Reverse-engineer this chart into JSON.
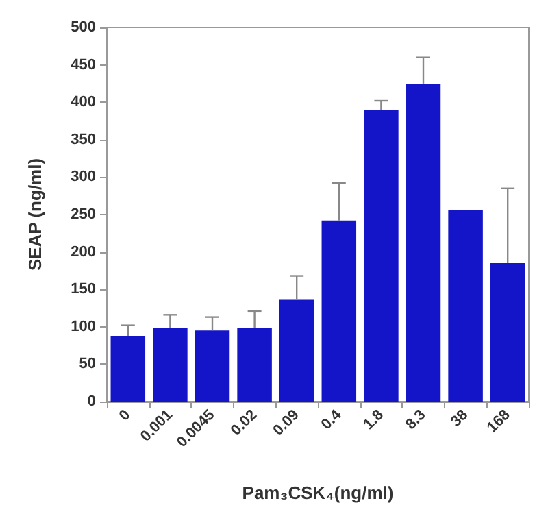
{
  "chart_data": {
    "type": "bar",
    "xlabel": "Pam₃CSK₄(ng/ml)",
    "ylabel": "SEAP (ng/ml)",
    "categories": [
      "0",
      "0.001",
      "0.0045",
      "0.02",
      "0.09",
      "0.4",
      "1.8",
      "8.3",
      "38",
      "168"
    ],
    "values": [
      87,
      98,
      95,
      98,
      136,
      242,
      390,
      425,
      256,
      185
    ],
    "errors": [
      [
        87,
        102
      ],
      [
        98,
        116
      ],
      [
        95,
        113
      ],
      [
        98,
        121
      ],
      [
        136,
        168
      ],
      [
        242,
        292
      ],
      [
        390,
        402
      ],
      [
        425,
        460
      ],
      null,
      [
        185,
        285
      ]
    ],
    "color": "#1414c8",
    "ylim": [
      0,
      500
    ],
    "yticks": [
      0,
      50,
      100,
      150,
      200,
      250,
      300,
      350,
      400,
      450,
      500
    ],
    "grid": false
  }
}
